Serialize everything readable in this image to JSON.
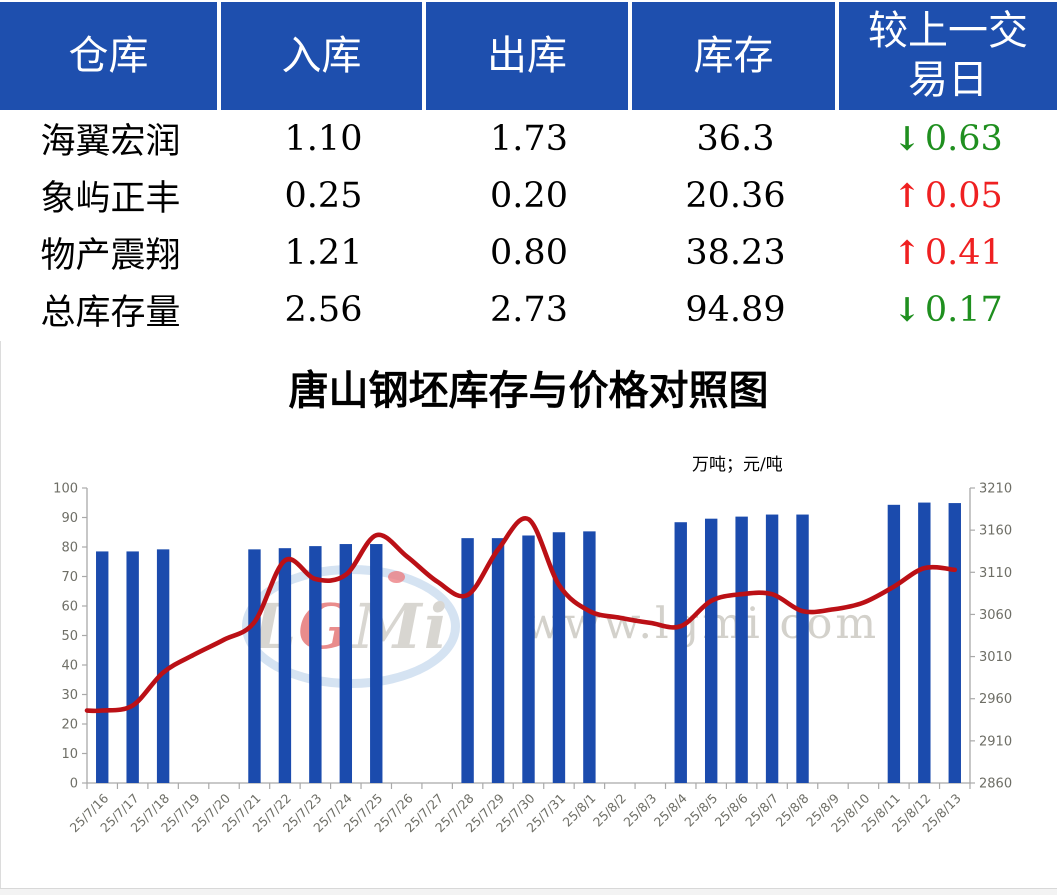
{
  "table": {
    "headers": [
      "仓库",
      "入库",
      "出库",
      "库存",
      "较上一交易日"
    ],
    "rows": [
      {
        "warehouse": "海翼宏润",
        "inbound": "1.10",
        "outbound": "1.73",
        "stock": "36.3",
        "change": "0.63",
        "direction": "down"
      },
      {
        "warehouse": "象屿正丰",
        "inbound": "0.25",
        "outbound": "0.20",
        "stock": "20.36",
        "change": "0.05",
        "direction": "up"
      },
      {
        "warehouse": "物产震翔",
        "inbound": "1.21",
        "outbound": "0.80",
        "stock": "38.23",
        "change": "0.41",
        "direction": "up"
      },
      {
        "warehouse": "总库存量",
        "inbound": "2.56",
        "outbound": "2.73",
        "stock": "94.89",
        "change": "0.17",
        "direction": "down"
      }
    ]
  },
  "icons": {
    "up": "↑",
    "down": "↓"
  },
  "colors": {
    "header_bg": "#1e4fae",
    "header_text": "#ffffff",
    "bar": "#1b4bad",
    "line": "#bb1016",
    "up": "#ef2021",
    "down": "#1f8f1f",
    "axis": "#a9a9a9",
    "axis_text": "#6e6e66"
  },
  "chart_data": {
    "type": "bar",
    "subtype": "bar+line combo, dual axis",
    "title": "唐山钢坯库存与价格对照图",
    "units_label": "万吨；元/吨",
    "categories": [
      "25/7/16",
      "25/7/17",
      "25/7/18",
      "25/7/19",
      "25/7/20",
      "25/7/21",
      "25/7/22",
      "25/7/23",
      "25/7/24",
      "25/7/25",
      "25/7/26",
      "25/7/27",
      "25/7/28",
      "25/7/29",
      "25/7/30",
      "25/7/31",
      "25/8/1",
      "25/8/2",
      "25/8/3",
      "25/8/4",
      "25/8/5",
      "25/8/6",
      "25/8/7",
      "25/8/8",
      "25/8/9",
      "25/8/10",
      "25/8/11",
      "25/8/12",
      "25/8/13"
    ],
    "series": [
      {
        "name": "库存",
        "type": "bar",
        "axis": "left",
        "values": [
          78.5,
          78.5,
          79.2,
          null,
          null,
          79.2,
          79.6,
          80.3,
          81,
          81,
          null,
          null,
          83,
          83,
          83.9,
          85,
          85.3,
          null,
          null,
          88.4,
          89.6,
          90.3,
          91,
          91,
          null,
          null,
          94.3,
          95.06,
          94.89
        ]
      },
      {
        "name": "价格",
        "type": "line",
        "axis": "right",
        "values": [
          2946,
          2952,
          2991,
          3012,
          3030,
          3051,
          3124,
          3102,
          3107,
          3154,
          3129,
          3099,
          3083,
          3137,
          3173,
          3095,
          3064,
          3056,
          3050,
          3046,
          3076,
          3084,
          3084,
          3064,
          3066,
          3074,
          3093,
          3115,
          3113
        ]
      }
    ],
    "left_axis": {
      "min": 0,
      "max": 100,
      "step": 10
    },
    "right_axis": {
      "min": 2860,
      "max": 3210,
      "step": 50
    },
    "grid": false,
    "legend_position": "none"
  },
  "watermark": {
    "logo_letters": [
      "L",
      "G",
      "M",
      "i"
    ],
    "url_text": "www.lgmi.com"
  }
}
